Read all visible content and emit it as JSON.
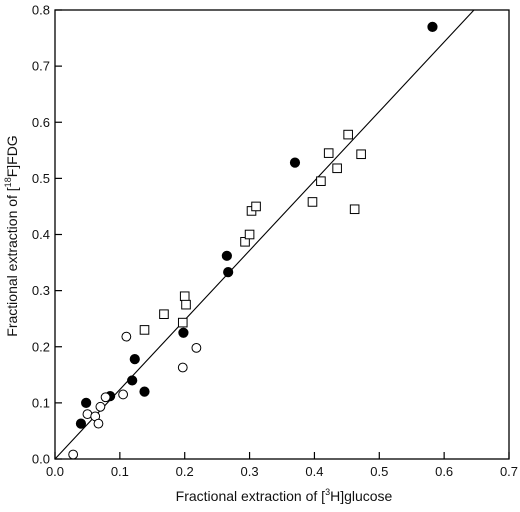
{
  "chart_data": {
    "type": "scatter",
    "title": "",
    "xlabel": {
      "prefix": "Fractional extraction of [",
      "sup": "3",
      "suffix": "H]glucose"
    },
    "ylabel": {
      "prefix": "Fractional extraction of [",
      "sup": "18",
      "suffix": "F]FDG"
    },
    "xlim": [
      0.0,
      0.7
    ],
    "ylim": [
      0.0,
      0.8
    ],
    "xticks": [
      "0.0",
      "0.1",
      "0.2",
      "0.3",
      "0.4",
      "0.5",
      "0.6",
      "0.7"
    ],
    "yticks": [
      "0.0",
      "0.1",
      "0.2",
      "0.3",
      "0.4",
      "0.5",
      "0.6",
      "0.7",
      "0.8"
    ],
    "grid": false,
    "legend": "none",
    "series": [
      {
        "marker": "filled-circle",
        "color": "#000000",
        "points": [
          [
            0.04,
            0.063
          ],
          [
            0.048,
            0.1
          ],
          [
            0.085,
            0.112
          ],
          [
            0.119,
            0.14
          ],
          [
            0.123,
            0.178
          ],
          [
            0.138,
            0.12
          ],
          [
            0.198,
            0.225
          ],
          [
            0.265,
            0.362
          ],
          [
            0.267,
            0.333
          ],
          [
            0.37,
            0.528
          ],
          [
            0.582,
            0.77
          ]
        ]
      },
      {
        "marker": "open-circle",
        "color": "#000000",
        "points": [
          [
            0.028,
            0.008
          ],
          [
            0.05,
            0.08
          ],
          [
            0.062,
            0.076
          ],
          [
            0.067,
            0.063
          ],
          [
            0.07,
            0.093
          ],
          [
            0.078,
            0.11
          ],
          [
            0.105,
            0.115
          ],
          [
            0.11,
            0.218
          ],
          [
            0.197,
            0.163
          ],
          [
            0.218,
            0.198
          ]
        ]
      },
      {
        "marker": "open-square",
        "color": "#000000",
        "points": [
          [
            0.138,
            0.23
          ],
          [
            0.168,
            0.258
          ],
          [
            0.197,
            0.243
          ],
          [
            0.2,
            0.29
          ],
          [
            0.202,
            0.275
          ],
          [
            0.293,
            0.387
          ],
          [
            0.3,
            0.4
          ],
          [
            0.303,
            0.442
          ],
          [
            0.31,
            0.45
          ],
          [
            0.397,
            0.458
          ],
          [
            0.41,
            0.495
          ],
          [
            0.422,
            0.545
          ],
          [
            0.435,
            0.518
          ],
          [
            0.452,
            0.578
          ],
          [
            0.462,
            0.445
          ],
          [
            0.472,
            0.543
          ]
        ]
      }
    ],
    "regression_line": {
      "x": [
        0.0,
        0.646
      ],
      "y": [
        0.0,
        0.8
      ]
    }
  }
}
